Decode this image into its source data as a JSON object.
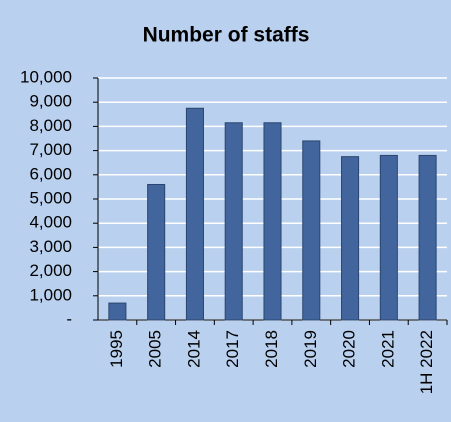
{
  "chart_data": {
    "type": "bar",
    "title": "Number of staffs",
    "categories": [
      "1995",
      "2005",
      "2014",
      "2017",
      "2018",
      "2019",
      "2020",
      "2021",
      "1H 2022"
    ],
    "values": [
      700,
      5600,
      8750,
      8150,
      8150,
      7400,
      6750,
      6800,
      6800
    ],
    "color": "#41659c",
    "ylim": [
      0,
      10000
    ],
    "yticks": [
      {
        "value": 0,
        "label": "-"
      },
      {
        "value": 1000,
        "label": "1,000"
      },
      {
        "value": 2000,
        "label": "2,000"
      },
      {
        "value": 3000,
        "label": "3,000"
      },
      {
        "value": 4000,
        "label": "4,000"
      },
      {
        "value": 5000,
        "label": "5,000"
      },
      {
        "value": 6000,
        "label": "6,000"
      },
      {
        "value": 7000,
        "label": "7,000"
      },
      {
        "value": 8000,
        "label": "8,000"
      },
      {
        "value": 9000,
        "label": "9,000"
      },
      {
        "value": 10000,
        "label": "10,000"
      }
    ],
    "grid": true
  }
}
